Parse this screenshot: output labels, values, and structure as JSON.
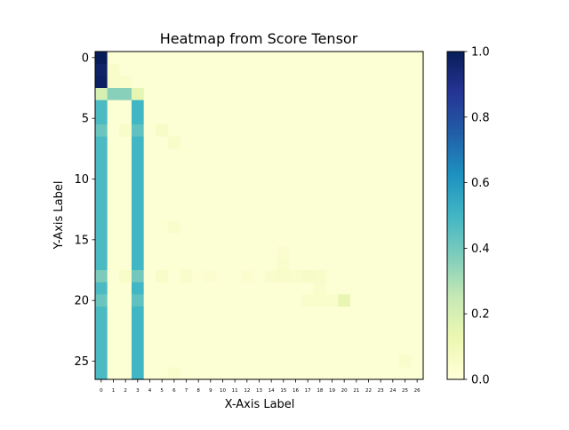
{
  "chart_data": {
    "type": "heatmap",
    "title": "Heatmap from Score Tensor",
    "xlabel": "X-Axis Label",
    "ylabel": "Y-Axis Label",
    "x_ticks": [
      "0",
      "1",
      "2",
      "3",
      "4",
      "5",
      "6",
      "7",
      "8",
      "9",
      "10",
      "11",
      "12",
      "13",
      "14",
      "15",
      "16",
      "17",
      "18",
      "19",
      "20",
      "21",
      "22",
      "23",
      "24",
      "25",
      "26"
    ],
    "y_ticks": [
      "0",
      "5",
      "10",
      "15",
      "20",
      "25"
    ],
    "colorbar": {
      "ticks": [
        "0.0",
        "0.2",
        "0.4",
        "0.6",
        "0.8",
        "1.0"
      ],
      "vmin": 0.0,
      "vmax": 1.0,
      "colormap": "YlGnBu",
      "stops": [
        "#ffffd9",
        "#edf8b1",
        "#c7e9b4",
        "#7fcdbb",
        "#41b6c4",
        "#1d91c0",
        "#225ea8",
        "#253494",
        "#081d58"
      ]
    },
    "n_rows": 27,
    "n_cols": 27,
    "base_value": 0.02,
    "column_patterns": [
      {
        "col": 0,
        "rows": [
          3,
          26
        ],
        "value": 0.48
      },
      {
        "col": 3,
        "rows": [
          4,
          26
        ],
        "value": 0.5
      }
    ],
    "cells": [
      {
        "r": 0,
        "c": 0,
        "v": 1.0
      },
      {
        "r": 1,
        "c": 0,
        "v": 0.97
      },
      {
        "r": 2,
        "c": 0,
        "v": 0.98
      },
      {
        "r": 1,
        "c": 1,
        "v": 0.05
      },
      {
        "r": 2,
        "c": 1,
        "v": 0.05
      },
      {
        "r": 2,
        "c": 2,
        "v": 0.04
      },
      {
        "r": 3,
        "c": 0,
        "v": 0.2
      },
      {
        "r": 3,
        "c": 1,
        "v": 0.36
      },
      {
        "r": 3,
        "c": 2,
        "v": 0.36
      },
      {
        "r": 3,
        "c": 3,
        "v": 0.15
      },
      {
        "r": 6,
        "c": 0,
        "v": 0.42
      },
      {
        "r": 6,
        "c": 2,
        "v": 0.05
      },
      {
        "r": 6,
        "c": 3,
        "v": 0.44
      },
      {
        "r": 6,
        "c": 5,
        "v": 0.06
      },
      {
        "r": 7,
        "c": 6,
        "v": 0.05
      },
      {
        "r": 14,
        "c": 6,
        "v": 0.04
      },
      {
        "r": 18,
        "c": 0,
        "v": 0.38
      },
      {
        "r": 18,
        "c": 2,
        "v": 0.05
      },
      {
        "r": 18,
        "c": 3,
        "v": 0.4
      },
      {
        "r": 18,
        "c": 5,
        "v": 0.05
      },
      {
        "r": 18,
        "c": 7,
        "v": 0.04
      },
      {
        "r": 18,
        "c": 9,
        "v": 0.03
      },
      {
        "r": 18,
        "c": 12,
        "v": 0.03
      },
      {
        "r": 18,
        "c": 14,
        "v": 0.04
      },
      {
        "r": 18,
        "c": 15,
        "v": 0.05
      },
      {
        "r": 18,
        "c": 16,
        "v": 0.04
      },
      {
        "r": 18,
        "c": 17,
        "v": 0.06
      },
      {
        "r": 18,
        "c": 18,
        "v": 0.05
      },
      {
        "r": 17,
        "c": 15,
        "v": 0.04
      },
      {
        "r": 16,
        "c": 15,
        "v": 0.03
      },
      {
        "r": 19,
        "c": 18,
        "v": 0.04
      },
      {
        "r": 20,
        "c": 0,
        "v": 0.42
      },
      {
        "r": 20,
        "c": 3,
        "v": 0.44
      },
      {
        "r": 20,
        "c": 17,
        "v": 0.04
      },
      {
        "r": 20,
        "c": 18,
        "v": 0.04
      },
      {
        "r": 20,
        "c": 19,
        "v": 0.04
      },
      {
        "r": 20,
        "c": 20,
        "v": 0.14
      },
      {
        "r": 25,
        "c": 25,
        "v": 0.04
      },
      {
        "r": 26,
        "c": 6,
        "v": 0.04
      }
    ]
  }
}
